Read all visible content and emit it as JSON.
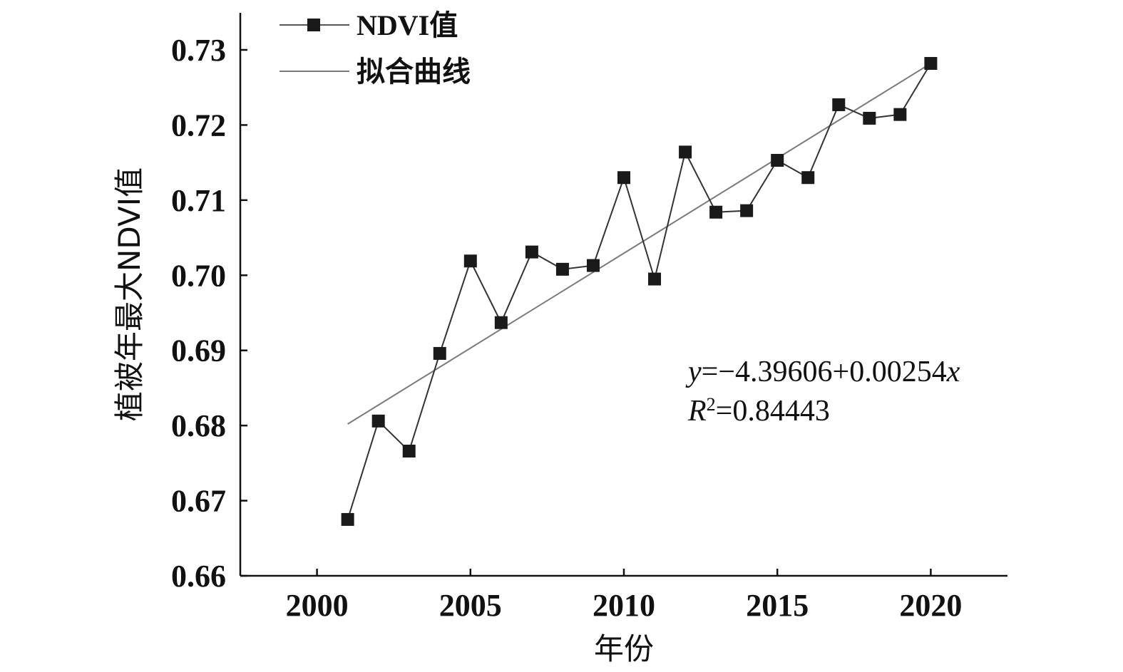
{
  "chart_data": {
    "type": "line",
    "xlabel": "年份",
    "ylabel": "植被年最大NDVI值",
    "xlim": [
      1997.5,
      2022.5
    ],
    "ylim": [
      0.66,
      0.735
    ],
    "x_ticks": [
      2000,
      2005,
      2010,
      2015,
      2020
    ],
    "x_tick_labels": [
      "2000",
      "2005",
      "2010",
      "2015",
      "2020"
    ],
    "y_ticks": [
      0.66,
      0.67,
      0.68,
      0.69,
      0.7,
      0.71,
      0.72,
      0.73
    ],
    "y_tick_labels": [
      "0.66",
      "0.67",
      "0.68",
      "0.69",
      "0.70",
      "0.71",
      "0.72",
      "0.73"
    ],
    "legend_position": "top-left",
    "grid": false,
    "series": [
      {
        "name": "NDVI值",
        "marker": "square",
        "color": "#1a1a1a",
        "x": [
          2001,
          2002,
          2003,
          2004,
          2005,
          2006,
          2007,
          2008,
          2009,
          2010,
          2011,
          2012,
          2013,
          2014,
          2015,
          2016,
          2017,
          2018,
          2019,
          2020
        ],
        "y": [
          0.6675,
          0.6806,
          0.6766,
          0.6896,
          0.7019,
          0.6937,
          0.7031,
          0.7008,
          0.7013,
          0.713,
          0.6995,
          0.7164,
          0.7084,
          0.7086,
          0.7153,
          0.713,
          0.7227,
          0.7209,
          0.7214,
          0.7282
        ]
      },
      {
        "name": "拟合曲线",
        "color": "#7a7a7a",
        "x": [
          2001,
          2020
        ],
        "y": [
          0.6802,
          0.7282
        ]
      }
    ],
    "annotations": {
      "y_var": "y",
      "equation_rest": "=−4.39606+0.00254",
      "x_var": "x",
      "r_var": "R",
      "r_sup": "2",
      "r_rest": "=0.84443"
    }
  }
}
